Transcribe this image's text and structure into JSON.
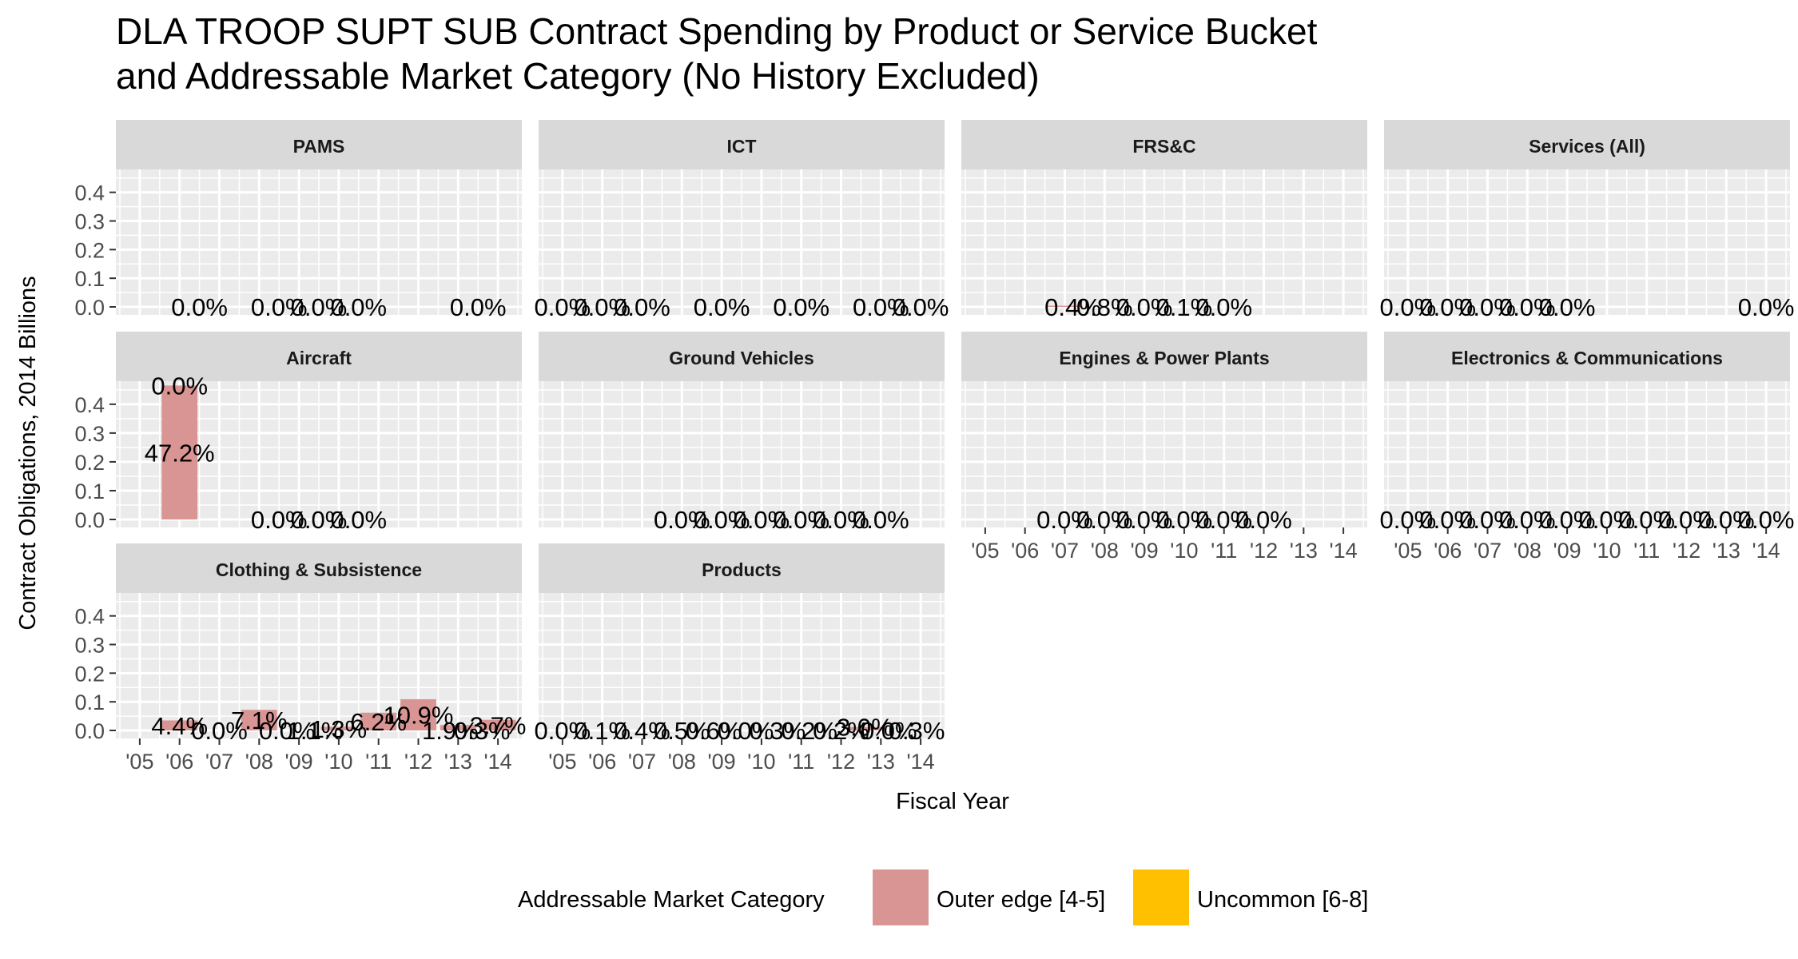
{
  "chart_data": {
    "type": "bar",
    "title_line1": "DLA TROOP SUPT SUB Contract Spending by Product or Service Bucket",
    "title_line2": "and Addressable Market Category (No History Excluded)",
    "xlabel": "Fiscal Year",
    "ylabel": "Contract Obligations, 2014 Billions",
    "ylim": [
      0,
      0.48
    ],
    "yticks": [
      "0.0",
      "0.1",
      "0.2",
      "0.3",
      "0.4"
    ],
    "ytick_values": [
      0,
      0.1,
      0.2,
      0.3,
      0.4
    ],
    "x_categories": [
      "'05",
      "'06",
      "'07",
      "'08",
      "'09",
      "'10",
      "'11",
      "'12",
      "'13",
      "'14"
    ],
    "legend": {
      "title": "Addressable Market Category",
      "placement": "bottom",
      "entries": [
        {
          "name": "Outer edge [4-5]",
          "color": "#d99594"
        },
        {
          "name": "Uncommon [6-8]",
          "color": "#ffc000"
        }
      ]
    },
    "panels": [
      {
        "name": "PAMS",
        "bars": [],
        "labels": [
          {
            "x": 1.5,
            "text": "0.0%"
          },
          {
            "x": 3.5,
            "text": "0.0%"
          },
          {
            "x": 4.5,
            "text": "0.0%"
          },
          {
            "x": 5.5,
            "text": "0.0%"
          },
          {
            "x": 8.5,
            "text": "0.0%"
          }
        ]
      },
      {
        "name": "ICT",
        "bars": [],
        "labels": [
          {
            "x": 0,
            "text": "0.0%"
          },
          {
            "x": 1,
            "text": "0.0%"
          },
          {
            "x": 2,
            "text": "0.0%"
          },
          {
            "x": 4,
            "text": "0.0%"
          },
          {
            "x": 6,
            "text": "0.0%"
          },
          {
            "x": 8,
            "text": "0.0%"
          },
          {
            "x": 9,
            "text": "0.0%"
          }
        ]
      },
      {
        "name": "FRS&C",
        "bars": [
          {
            "x": 2,
            "value": 0.004,
            "category": "Outer edge [4-5]"
          }
        ],
        "labels": [
          {
            "x": 2.2,
            "text": "0.4%"
          },
          {
            "x": 3,
            "text": "0.8%"
          },
          {
            "x": 4,
            "text": "0.0%"
          },
          {
            "x": 5,
            "text": "0.1%"
          },
          {
            "x": 6,
            "text": "0.0%"
          }
        ]
      },
      {
        "name": "Services (All)",
        "bars": [],
        "labels": [
          {
            "x": 0,
            "text": "0.0%"
          },
          {
            "x": 1,
            "text": "0.0%"
          },
          {
            "x": 2,
            "text": "0.0%"
          },
          {
            "x": 3,
            "text": "0.0%"
          },
          {
            "x": 4,
            "text": "0.0%"
          },
          {
            "x": 9,
            "text": "0.0%"
          }
        ]
      },
      {
        "name": "Aircraft",
        "bars": [
          {
            "x": 1,
            "value": 0.465,
            "category": "Outer edge [4-5]"
          }
        ],
        "labels": [
          {
            "x": 1,
            "y": 0.465,
            "text": "0.0%"
          },
          {
            "x": 1,
            "y": 0.232,
            "text": "47.2%"
          },
          {
            "x": 3.5,
            "text": "0.0%"
          },
          {
            "x": 4.5,
            "text": "0.0%"
          },
          {
            "x": 5.5,
            "text": "0.0%"
          }
        ]
      },
      {
        "name": "Ground Vehicles",
        "bars": [],
        "labels": [
          {
            "x": 3,
            "text": "0.0%"
          },
          {
            "x": 4,
            "text": "0.0%"
          },
          {
            "x": 5,
            "text": "0.0%"
          },
          {
            "x": 6,
            "text": "0.0%"
          },
          {
            "x": 7,
            "text": "0.0%"
          },
          {
            "x": 8,
            "text": "0.0%"
          }
        ]
      },
      {
        "name": "Engines & Power Plants",
        "bars": [],
        "labels": [
          {
            "x": 2,
            "text": "0.0%"
          },
          {
            "x": 3,
            "text": "0.0%"
          },
          {
            "x": 4,
            "text": "0.0%"
          },
          {
            "x": 5,
            "text": "0.0%"
          },
          {
            "x": 6,
            "text": "0.0%"
          },
          {
            "x": 7,
            "text": "0.0%"
          }
        ]
      },
      {
        "name": "Electronics & Communications",
        "bars": [],
        "labels": [
          {
            "x": 0,
            "text": "0.0%"
          },
          {
            "x": 1,
            "text": "0.0%"
          },
          {
            "x": 2,
            "text": "0.0%"
          },
          {
            "x": 3,
            "text": "0.0%"
          },
          {
            "x": 4,
            "text": "0.0%"
          },
          {
            "x": 5,
            "text": "0.0%"
          },
          {
            "x": 6,
            "text": "0.0%"
          },
          {
            "x": 7,
            "text": "0.0%"
          },
          {
            "x": 8,
            "text": "0.0%"
          },
          {
            "x": 9,
            "text": "0.0%"
          }
        ]
      },
      {
        "name": "Clothing & Subsistence",
        "bars": [
          {
            "x": 1,
            "value": 0.035,
            "category": "Outer edge [4-5]"
          },
          {
            "x": 3,
            "value": 0.072,
            "category": "Outer edge [4-5]"
          },
          {
            "x": 5,
            "value": 0.013,
            "category": "Outer edge [4-5]"
          },
          {
            "x": 6,
            "value": 0.062,
            "category": "Outer edge [4-5]"
          },
          {
            "x": 7,
            "value": 0.109,
            "category": "Outer edge [4-5]"
          },
          {
            "x": 8,
            "value": 0.019,
            "category": "Outer edge [4-5]"
          },
          {
            "x": 9,
            "value": 0.037,
            "category": "Outer edge [4-5]"
          }
        ],
        "labels": [
          {
            "x": 1,
            "y": 0.017,
            "text": "4.4%"
          },
          {
            "x": 2,
            "text": "0.0%"
          },
          {
            "x": 3,
            "y": 0.036,
            "text": "7.1%"
          },
          {
            "x": 3.7,
            "text": "0.0%"
          },
          {
            "x": 4.4,
            "text": "1.1%"
          },
          {
            "x": 5,
            "y": 0.006,
            "text": "1.3%"
          },
          {
            "x": 6,
            "y": 0.031,
            "text": "6.2%"
          },
          {
            "x": 7,
            "y": 0.054,
            "text": "10.9%"
          },
          {
            "x": 7.8,
            "text": "1.9%"
          },
          {
            "x": 8.6,
            "text": "0.3%"
          },
          {
            "x": 9,
            "y": 0.018,
            "text": "3.7%"
          }
        ]
      },
      {
        "name": "Products",
        "bars": [
          {
            "x": 7.6,
            "value": 0.012,
            "category": "Outer edge [4-5]"
          }
        ],
        "labels": [
          {
            "x": 0,
            "text": "0.0%"
          },
          {
            "x": 1,
            "text": "0.1%"
          },
          {
            "x": 2,
            "text": "0.4%"
          },
          {
            "x": 3,
            "text": "0.5%"
          },
          {
            "x": 3.8,
            "text": "0.6%"
          },
          {
            "x": 4.6,
            "text": "0.0%"
          },
          {
            "x": 5.4,
            "text": "0.3%"
          },
          {
            "x": 6.2,
            "text": "0.2%"
          },
          {
            "x": 7.0,
            "text": "0.2%"
          },
          {
            "x": 7.6,
            "y": 0.012,
            "text": "3.0%"
          },
          {
            "x": 8.2,
            "text": "0.0%"
          },
          {
            "x": 8.9,
            "text": "0.3%"
          }
        ]
      }
    ]
  }
}
